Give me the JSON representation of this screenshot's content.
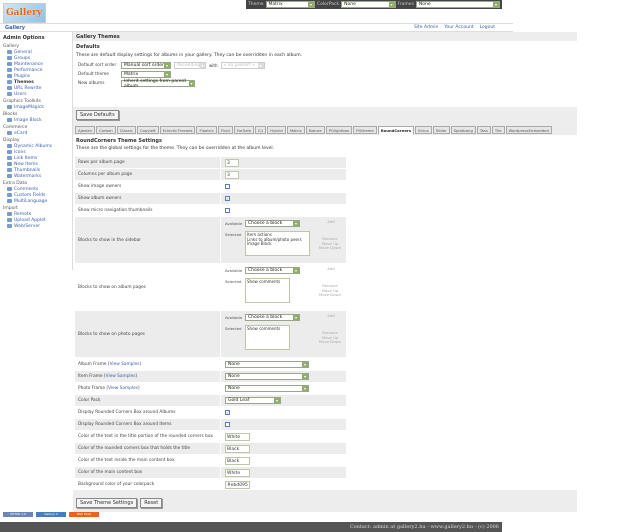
{
  "topbar": {
    "theme_label": "Theme",
    "theme_value": "Matrix",
    "colorpack_label": "ColorPack",
    "colorpack_value": "None",
    "frames_label": "Frames",
    "frames_value": "None"
  },
  "logo_text": "Gallery",
  "breadcrumb": "Gallery",
  "header_links": [
    "Site Admin",
    "Your Account",
    "Logout"
  ],
  "sidebar": {
    "title": "Admin Options",
    "groups": [
      {
        "label": "Gallery",
        "items": [
          "General",
          "Groups",
          "Maintenance",
          "Performance",
          "Plugins",
          "Themes",
          "URL Rewrite",
          "Users"
        ]
      },
      {
        "label": "Graphics Toolkits",
        "items": [
          "ImageMagick"
        ]
      },
      {
        "label": "Blocks",
        "items": [
          "Image Block"
        ]
      },
      {
        "label": "Commerce",
        "items": [
          "eCard"
        ]
      },
      {
        "label": "Display",
        "items": [
          "Dynamic Albums",
          "Icons",
          "Link Items",
          "New Items",
          "Thumbnails",
          "Watermarks"
        ]
      },
      {
        "label": "Extra Data",
        "items": [
          "Comments",
          "Custom Fields",
          "MultiLanguage"
        ]
      },
      {
        "label": "Import",
        "items": [
          "Remote",
          "Upload Applet",
          "Web/Server"
        ]
      }
    ],
    "current": "Themes"
  },
  "page_title": "Gallery Themes",
  "defaults": {
    "title": "Defaults",
    "description": "These are default display settings for albums in your gallery. They can be overridden in each album.",
    "sort_label": "Default sort order",
    "sort_value": "Manual sort order",
    "direction_value": "Ascending",
    "with_label": "with",
    "preset_value": "« no presort »",
    "theme_label": "Default theme",
    "theme_value": "Matrix",
    "new_label": "New albums",
    "new_value": "Inherit settings from parent album",
    "save_label": "Save Defaults"
  },
  "tabs": [
    "Ajaxian",
    "Carbon",
    "Classic",
    "Copyleft",
    "EclecticThreads",
    "Floatrix",
    "Fluid",
    "ForSale",
    "G1",
    "Hybrid",
    "Matrix",
    "Nature",
    "PGlightbox",
    "PGtheme",
    "RoundCorners",
    "Siriux",
    "Slider",
    "Splatbang",
    "Tass",
    "Tile",
    "WordpressEmbedded"
  ],
  "active_tab": "RoundCorners",
  "theme_settings": {
    "title": "RoundCorners Theme Settings",
    "description": "These are the global settings for the theme. They can be overridden at the album level.",
    "rows_label": "Rows per album page",
    "rows_value": "3",
    "cols_label": "Columns per album page",
    "cols_value": "3",
    "image_owners_label": "Show image owners",
    "image_owners": false,
    "album_owners_label": "Show album owners",
    "album_owners": true,
    "micro_label": "Show micro navigation thumbnails",
    "micro": false,
    "blocks": [
      {
        "label": "Blocks to show in the sidebar",
        "selected": [
          "Item actions",
          "Links to album/photo peers",
          "Image Block"
        ]
      },
      {
        "label": "Blocks to show on album pages",
        "selected": [
          "Show comments"
        ]
      },
      {
        "label": "Blocks to show on photo pages",
        "selected": [
          "Show comments"
        ]
      }
    ],
    "available_label": "Available",
    "selected_label": "Selected",
    "choose": "Choose a block",
    "add": "Add",
    "remove": "Remove",
    "move_up": "Move Up",
    "move_down": "Move Down",
    "album_frame_label": "Album Frame",
    "item_frame_label": "Item Frame",
    "photo_frame_label": "Photo Frame",
    "view_samples": "View Samples",
    "album_frame": "None",
    "item_frame": "None",
    "photo_frame": "None",
    "color_pack_label": "Color Pack",
    "color_pack": "Gold Leaf",
    "rc_albums_label": "Display Rounded Corners Box around Albums",
    "rc_albums": true,
    "rc_items_label": "Display Rounded Corners Box around Items",
    "rc_items": false,
    "c1_label": "Color of the text in the title portion of the rounded corners box",
    "c1": "White",
    "c2_label": "Color of the rounded corners box that holds the title",
    "c2": "Black",
    "c3_label": "Color of the text inside the main content box",
    "c3": "Black",
    "c4_label": "Color of the main content box",
    "c4": "White",
    "c5_label": "Background color of your colorpack",
    "c5": "#ebd095",
    "save_label": "Save Theme Settings",
    "reset_label": "Reset"
  },
  "footer_badges": [
    "XHTML 1.0",
    "Gallery 2",
    "RSS Feed"
  ],
  "footer": "Contact: admin at gallery2.hu - www.gallery2.hu - (c) 2006"
}
